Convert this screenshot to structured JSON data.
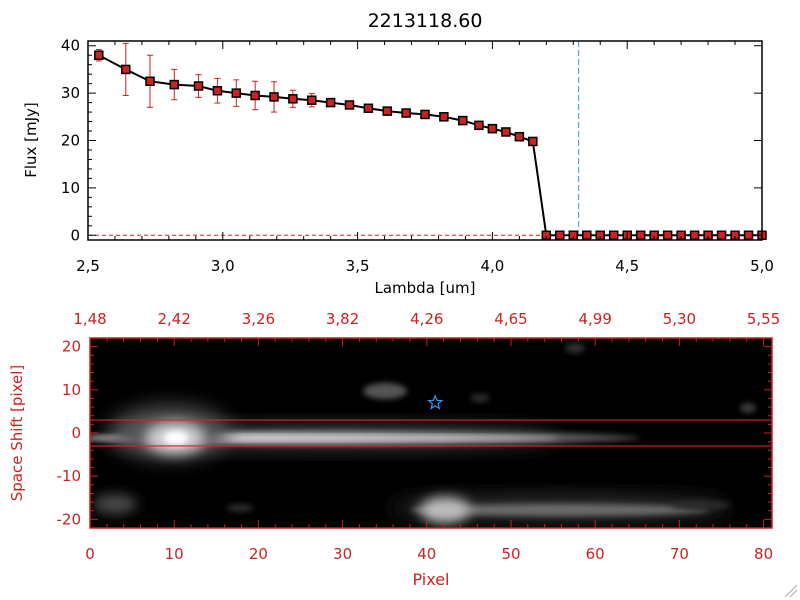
{
  "chart_data": [
    {
      "type": "line",
      "title": "2213118.60",
      "xlabel": "Lambda [um]",
      "ylabel": "Flux [mJy]",
      "xlim": [
        2.5,
        5.0
      ],
      "ylim": [
        -1,
        41
      ],
      "xticks": [
        2.5,
        3.0,
        3.5,
        4.0,
        4.5,
        5.0
      ],
      "xtick_labels": [
        "2,5",
        "3,0",
        "3,5",
        "4,0",
        "4,5",
        "5,0"
      ],
      "yticks": [
        0,
        10,
        20,
        30,
        40
      ],
      "ytick_labels": [
        "0",
        "10",
        "20",
        "30",
        "40"
      ],
      "reference_line_x": 4.32,
      "colors": {
        "line": "#000000",
        "marker": "#cc2222",
        "errorbar": "#cc2222",
        "reference_line": "#3399dd"
      },
      "series": [
        {
          "x": [
            2.54,
            2.64,
            2.73,
            2.82,
            2.91,
            2.98,
            3.05,
            3.12,
            3.19,
            3.26,
            3.33,
            3.4,
            3.47,
            3.54,
            3.61,
            3.68,
            3.75,
            3.82,
            3.89,
            3.95,
            4.0,
            4.05,
            4.1,
            4.15,
            4.2,
            4.25,
            4.3,
            4.35,
            4.4,
            4.45,
            4.5,
            4.55,
            4.6,
            4.65,
            4.7,
            4.75,
            4.8,
            4.85,
            4.9,
            4.95,
            5.0
          ],
          "y": [
            38,
            35,
            32.5,
            31.8,
            31.5,
            30.5,
            30,
            29.5,
            29.2,
            28.8,
            28.5,
            28,
            27.5,
            26.8,
            26.2,
            25.8,
            25.5,
            25,
            24.2,
            23.2,
            22.5,
            21.8,
            20.8,
            19.8,
            0,
            0,
            0,
            0,
            0,
            0,
            0,
            0,
            0,
            0,
            0,
            0,
            0,
            0,
            0,
            0,
            0
          ],
          "yerr": [
            1.2,
            5.5,
            5.5,
            3.2,
            2.4,
            2.6,
            2.8,
            3,
            3.2,
            1.8,
            1.4,
            0.8,
            0.6,
            0.5,
            0.5,
            0.5,
            0.5,
            0.5,
            0.5,
            0.5,
            0.5,
            0.5,
            0.5,
            0.5,
            0,
            0,
            0,
            0,
            0,
            0,
            0,
            0,
            0,
            0,
            0,
            0,
            0,
            0,
            0,
            0,
            0
          ]
        }
      ]
    },
    {
      "type": "heatmap",
      "xlabel": "Pixel",
      "ylabel": "Space Shift [pixel]",
      "xlim": [
        0,
        81
      ],
      "ylim": [
        -22,
        22
      ],
      "xticks": [
        0,
        10,
        20,
        30,
        40,
        50,
        60,
        70,
        80
      ],
      "xtick_labels": [
        "0",
        "10",
        "20",
        "30",
        "40",
        "50",
        "60",
        "70",
        "80"
      ],
      "yticks": [
        -20,
        -10,
        0,
        10,
        20
      ],
      "ytick_labels": [
        "-20",
        "-10",
        "0",
        "10",
        "20"
      ],
      "top_axis_ticks": [
        0,
        10,
        20,
        30,
        40,
        50,
        60,
        70,
        80
      ],
      "top_axis_labels": [
        "1,48",
        "2,42",
        "3,26",
        "3,82",
        "4,26",
        "4,65",
        "4,99",
        "5,30",
        "5,55"
      ],
      "horizontal_lines_y": [
        3,
        -3
      ],
      "marker": {
        "symbol": "star",
        "x": 41,
        "y": 7
      },
      "colors": {
        "axes": "#cc2222",
        "lines": "#dd2222",
        "marker": "#3399ff",
        "background": "#000000"
      }
    }
  ]
}
